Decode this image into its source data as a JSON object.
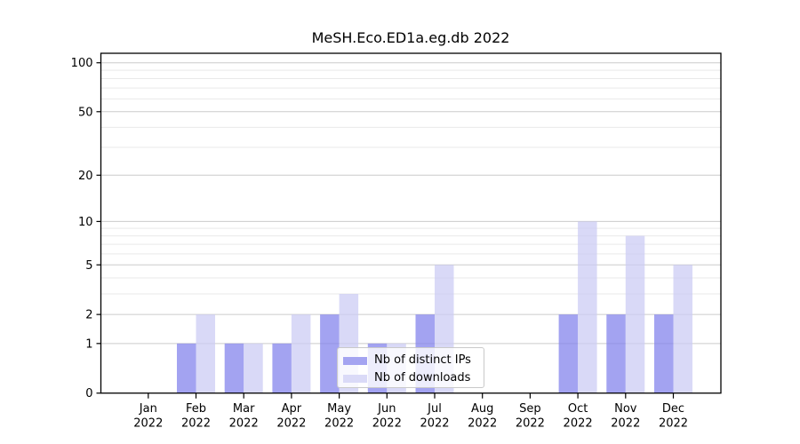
{
  "figure": {
    "title": "MeSH.Eco.ED1a.eg.db 2022"
  },
  "legend": {
    "items": [
      {
        "label": "Nb of distinct IPs",
        "swatch_color": "#a4a4f1"
      },
      {
        "label": "Nb of downloads",
        "swatch_color": "#dadaf7"
      }
    ]
  },
  "chart_data": {
    "type": "bar",
    "title": "MeSH.Eco.ED1a.eg.db 2022",
    "categories": [
      "Jan 2022",
      "Feb 2022",
      "Mar 2022",
      "Apr 2022",
      "May 2022",
      "Jun 2022",
      "Jul 2022",
      "Aug 2022",
      "Sep 2022",
      "Oct 2022",
      "Nov 2022",
      "Dec 2022"
    ],
    "series": [
      {
        "name": "Nb of distinct IPs",
        "color": "#8080ec",
        "fill_alpha": 0.72,
        "swatch_color": "#a4a4f1",
        "values": [
          0,
          1,
          1,
          1,
          2,
          1,
          2,
          0,
          0,
          2,
          2,
          2
        ]
      },
      {
        "name": "Nb of downloads",
        "color": "#cbcbf4",
        "fill_alpha": 0.72,
        "swatch_color": "#dadaf7",
        "values": [
          0,
          2,
          1,
          2,
          3,
          1,
          5,
          0,
          0,
          10,
          8,
          5
        ]
      }
    ],
    "xlabel": "",
    "ylabel": "",
    "yscale": "log1p",
    "ylim": [
      0,
      114
    ],
    "y_major_ticks": [
      0,
      1,
      2,
      5,
      10,
      20,
      50,
      100
    ],
    "y_minor_gridlines": [
      3,
      4,
      6,
      7,
      8,
      9,
      30,
      40,
      60,
      70,
      80,
      90
    ],
    "grid": "horizontal",
    "legend_position": "lower center-right",
    "colors": {
      "major_grid": "#cbcbcb",
      "minor_grid": "#e9e9e9",
      "spine": "#000000",
      "tick_label": "#000000"
    }
  }
}
